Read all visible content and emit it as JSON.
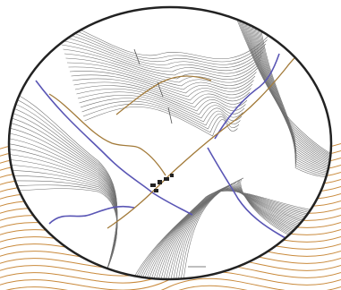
{
  "map": {
    "colors": {
      "background_contour": "#c98a3c",
      "contour": "#6f6f6f",
      "stream": "#5a56b5",
      "road": "#a37b3a",
      "frame": "#222222",
      "lens_fill": "#ffffff"
    },
    "layers": [
      "background-contours",
      "lens-contours",
      "streams",
      "roads",
      "buildings",
      "labels"
    ]
  }
}
